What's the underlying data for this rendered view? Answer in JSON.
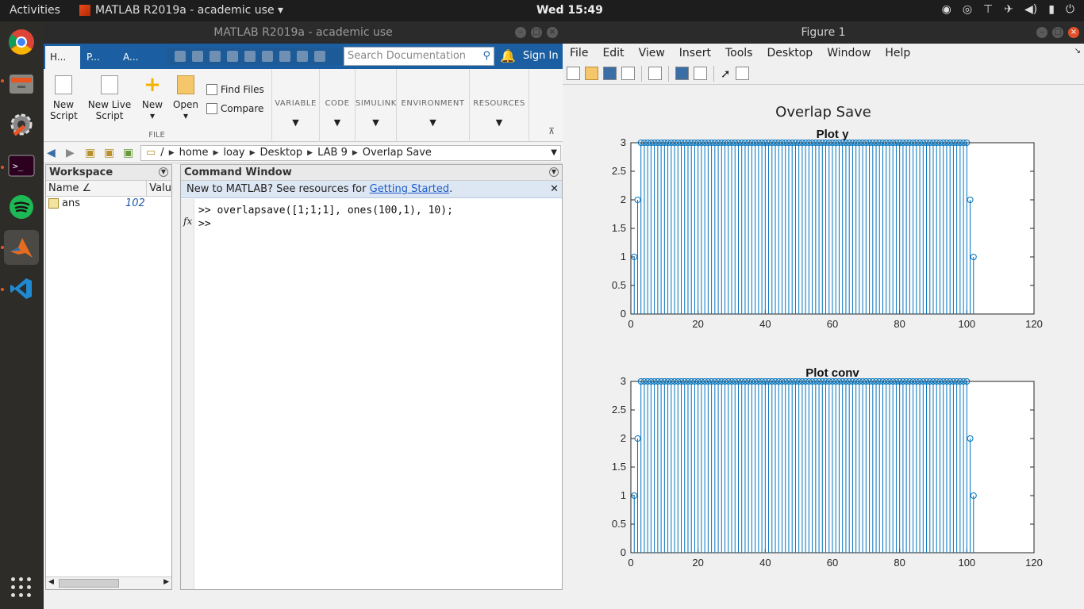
{
  "topbar": {
    "activities": "Activities",
    "app_name": "MATLAB R2019a - academic use ▾",
    "clock": "Wed 15:49",
    "tray_icons": [
      "location-icon",
      "network-icon",
      "airplane-icon",
      "volume-icon",
      "battery-icon",
      "power-icon"
    ]
  },
  "dock": {
    "apps": [
      "chrome",
      "files",
      "settings",
      "terminal",
      "spotify",
      "matlab",
      "vscode"
    ]
  },
  "matlab": {
    "title": "MATLAB R2019a - academic use",
    "tabs": [
      "H...",
      "P...",
      "A..."
    ],
    "search_placeholder": "Search Documentation",
    "sign_in": "Sign In",
    "ribbon": {
      "new_script": "New Script",
      "new_live_script": "New Live Script",
      "new": "New",
      "open": "Open",
      "find_files": "Find Files",
      "compare": "Compare",
      "group_file": "FILE",
      "groups": [
        "VARIABLE",
        "CODE",
        "SIMULINK",
        "ENVIRONMENT",
        "RESOURCES"
      ]
    },
    "path": [
      "/",
      "home",
      "loay",
      "Desktop",
      "LAB 9",
      "Overlap Save"
    ],
    "workspace": {
      "title": "Workspace",
      "col_name": "Name ∠",
      "col_value": "Valu",
      "rows": [
        {
          "name": "ans",
          "value": "102"
        }
      ]
    },
    "command_window": {
      "title": "Command Window",
      "banner_text": "New to MATLAB? See resources for ",
      "banner_link": "Getting Started",
      "banner_end": ".",
      "line1": ">> overlapsave([1;1;1], ones(100,1), 10);",
      "line2": ">>"
    }
  },
  "figure": {
    "title": "Figure 1",
    "menu": [
      "File",
      "Edit",
      "View",
      "Insert",
      "Tools",
      "Desktop",
      "Window",
      "Help"
    ],
    "sgtitle": "Overlap Save"
  },
  "chart_data": [
    {
      "type": "stem",
      "title": "Plot y",
      "xlim": [
        0,
        120
      ],
      "ylim": [
        0,
        3
      ],
      "xticks": [
        0,
        20,
        40,
        60,
        80,
        100,
        120
      ],
      "yticks": [
        0,
        0.5,
        1,
        1.5,
        2,
        2.5,
        3
      ],
      "x_range": [
        1,
        102
      ],
      "values_rule": "y(1)=1, y(2)=2, y(3..100)=3, y(101)=2, y(102)=1"
    },
    {
      "type": "stem",
      "title": "Plot conv",
      "xlim": [
        0,
        120
      ],
      "ylim": [
        0,
        3
      ],
      "xticks": [
        0,
        20,
        40,
        60,
        80,
        100,
        120
      ],
      "yticks": [
        0,
        0.5,
        1,
        1.5,
        2,
        2.5,
        3
      ],
      "x_range": [
        1,
        102
      ],
      "values_rule": "y(1)=1, y(2)=2, y(3..100)=3, y(101)=2, y(102)=1"
    }
  ],
  "colors": {
    "stem": "#0072bd",
    "ml_blue": "#1b5fa2"
  }
}
